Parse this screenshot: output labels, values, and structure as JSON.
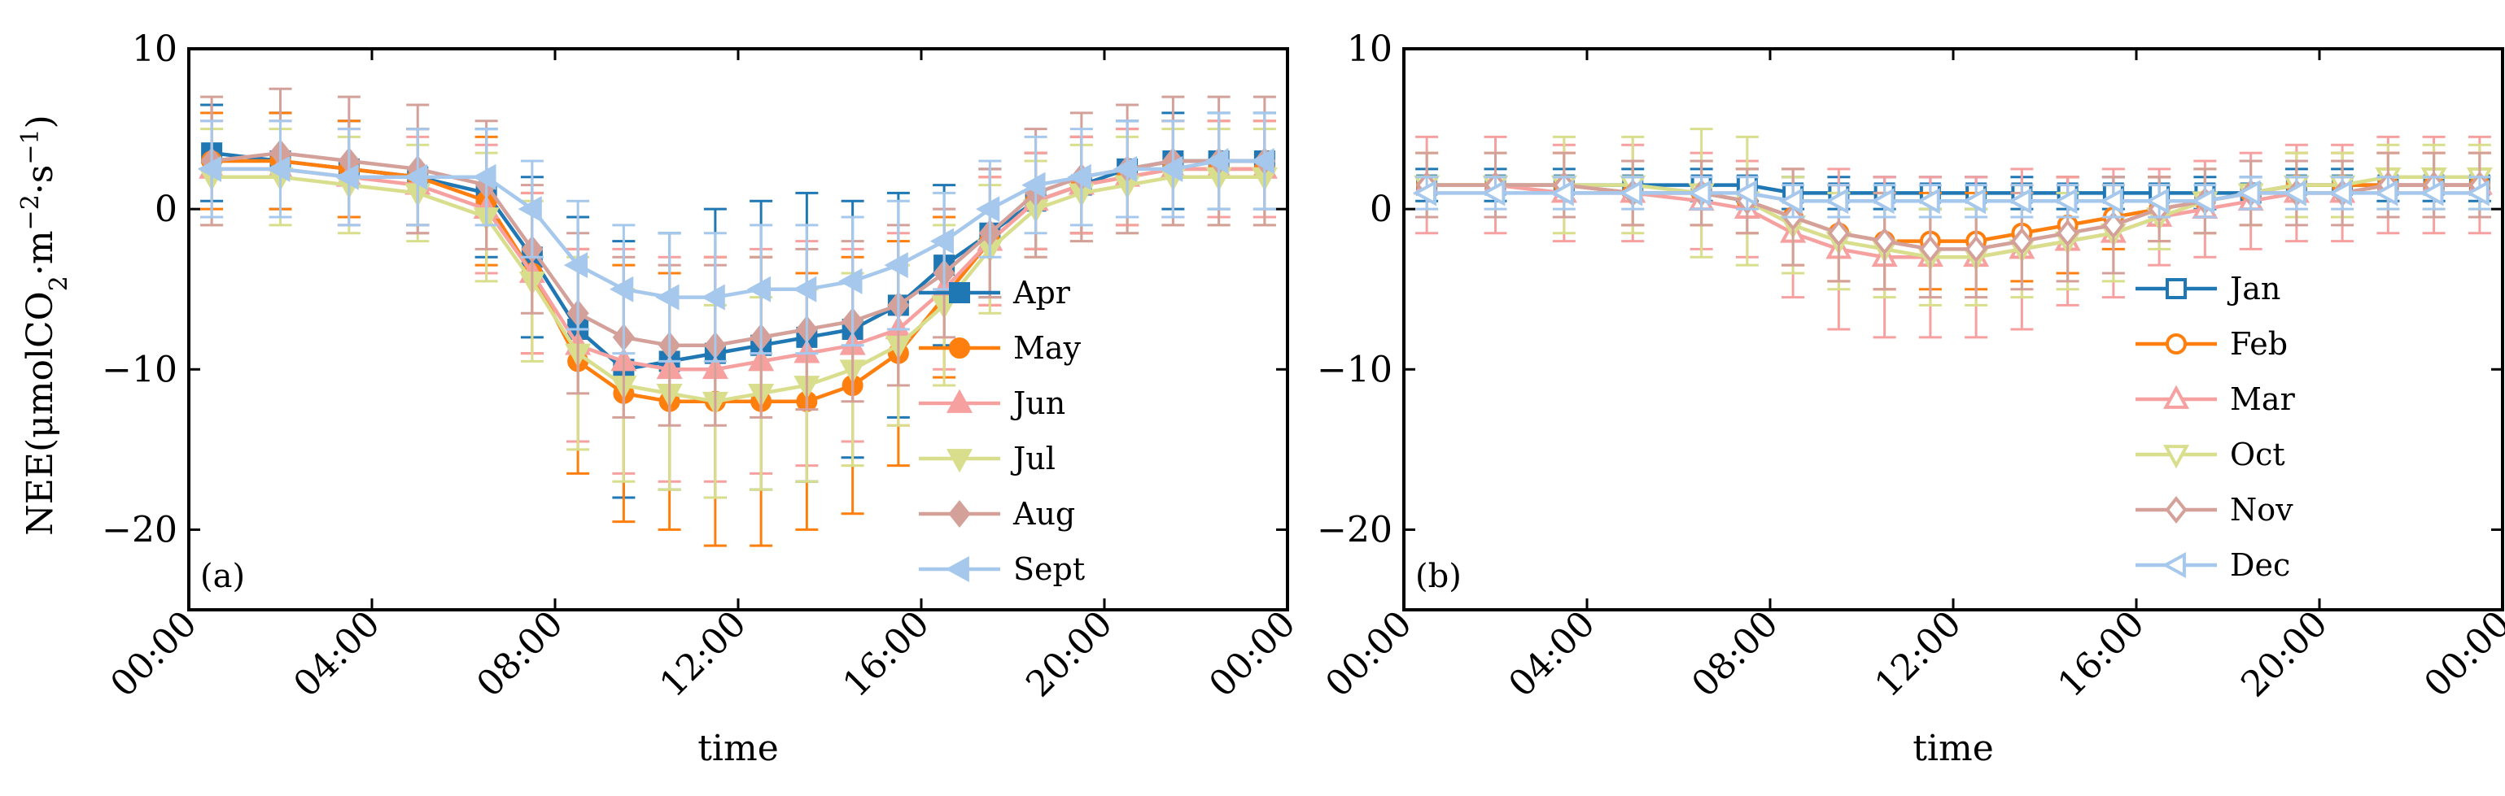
{
  "chart_data": [
    {
      "panel_label": "(a)",
      "type": "line",
      "error_bars": true,
      "xlabel": "time",
      "ylabel_main": "NEE(μmolCO",
      "ylabel_sub2": "2",
      "ylabel_mid": "·m",
      "ylabel_sup1": "−2",
      "ylabel_mid2": "·s",
      "ylabel_sup2": "−1",
      "ylabel_end": ")",
      "xlim": [
        0,
        24
      ],
      "ylim": [
        -25,
        10
      ],
      "x_ticks": [
        0,
        4,
        8,
        12,
        16,
        20,
        24
      ],
      "x_tick_labels": [
        "00:00",
        "04:00",
        "08:00",
        "12:00",
        "16:00",
        "20:00",
        "00:00"
      ],
      "y_ticks": [
        10,
        0,
        -10,
        -20
      ],
      "y_tick_labels": [
        "10",
        "0",
        "−10",
        "−20"
      ],
      "legend_position": "right",
      "series": [
        {
          "name": "Apr",
          "color": "#1f77b4",
          "marker": "square",
          "filled": true,
          "x": [
            0.5,
            2,
            3.5,
            5,
            6.5,
            7.5,
            8.5,
            9.5,
            10.5,
            11.5,
            12.5,
            13.5,
            14.5,
            15.5,
            16.5,
            17.5,
            18.5,
            19.5,
            20.5,
            21.5,
            22.5,
            23.5
          ],
          "y": [
            3.5,
            3.0,
            2.5,
            2.0,
            1.0,
            -3.0,
            -7.5,
            -10.0,
            -9.5,
            -9.0,
            -8.5,
            -8.0,
            -7.5,
            -6.0,
            -3.5,
            -1.5,
            0.5,
            1.5,
            2.5,
            3.0,
            3.0,
            3.0
          ],
          "err": [
            3,
            3,
            3,
            3,
            4,
            5,
            7,
            8,
            8,
            9,
            9,
            9,
            8,
            7,
            5,
            4,
            3,
            3,
            3,
            3,
            3,
            3
          ]
        },
        {
          "name": "May",
          "color": "#ff7f0e",
          "marker": "circle",
          "filled": true,
          "x": [
            0.5,
            2,
            3.5,
            5,
            6.5,
            7.5,
            8.5,
            9.5,
            10.5,
            11.5,
            12.5,
            13.5,
            14.5,
            15.5,
            16.5,
            17.5,
            18.5,
            19.5,
            20.5,
            21.5,
            22.5,
            23.5
          ],
          "y": [
            3.0,
            3.0,
            2.5,
            2.0,
            0.5,
            -4.0,
            -9.5,
            -11.5,
            -12.0,
            -12.0,
            -12.0,
            -12.0,
            -11.0,
            -9.0,
            -5.5,
            -2.0,
            0.5,
            1.5,
            2.0,
            2.5,
            2.5,
            2.5
          ],
          "err": [
            3,
            3,
            3,
            3,
            4,
            5,
            7,
            8,
            8,
            9,
            9,
            8,
            8,
            7,
            5,
            4,
            3,
            3,
            3,
            3,
            3,
            3
          ]
        },
        {
          "name": "Jun",
          "color": "#f7a0a0",
          "marker": "triangle-up",
          "filled": true,
          "x": [
            0.5,
            2,
            3.5,
            5,
            6.5,
            7.5,
            8.5,
            9.5,
            10.5,
            11.5,
            12.5,
            13.5,
            14.5,
            15.5,
            16.5,
            17.5,
            18.5,
            19.5,
            20.5,
            21.5,
            22.5,
            23.5
          ],
          "y": [
            2.5,
            2.5,
            2.0,
            1.5,
            0.0,
            -4.0,
            -8.5,
            -9.5,
            -10.0,
            -10.0,
            -9.5,
            -9.0,
            -8.5,
            -7.5,
            -5.0,
            -2.0,
            0.5,
            1.5,
            2.0,
            2.5,
            2.5,
            2.5
          ],
          "err": [
            3,
            3,
            3,
            3,
            4,
            5,
            6,
            7,
            7,
            7,
            7,
            7,
            6,
            6,
            5,
            4,
            3,
            3,
            3,
            3,
            3,
            3
          ]
        },
        {
          "name": "Jul",
          "color": "#d8de8c",
          "marker": "triangle-down",
          "filled": true,
          "x": [
            0.5,
            2,
            3.5,
            5,
            6.5,
            7.5,
            8.5,
            9.5,
            10.5,
            11.5,
            12.5,
            13.5,
            14.5,
            15.5,
            16.5,
            17.5,
            18.5,
            19.5,
            20.5,
            21.5,
            22.5,
            23.5
          ],
          "y": [
            2.0,
            2.0,
            1.5,
            1.0,
            -0.5,
            -4.5,
            -9.0,
            -11.0,
            -11.5,
            -12.0,
            -11.5,
            -11.0,
            -10.0,
            -8.5,
            -6.0,
            -2.5,
            0.0,
            1.0,
            1.5,
            2.0,
            2.0,
            2.0
          ],
          "err": [
            3,
            3,
            3,
            3,
            4,
            5,
            6,
            6,
            6,
            6,
            6,
            6,
            6,
            5,
            5,
            4,
            3,
            3,
            3,
            3,
            3,
            3
          ]
        },
        {
          "name": "Aug",
          "color": "#d4a09a",
          "marker": "diamond",
          "filled": true,
          "x": [
            0.5,
            2,
            3.5,
            5,
            6.5,
            7.5,
            8.5,
            9.5,
            10.5,
            11.5,
            12.5,
            13.5,
            14.5,
            15.5,
            16.5,
            17.5,
            18.5,
            19.5,
            20.5,
            21.5,
            22.5,
            23.5
          ],
          "y": [
            3.0,
            3.5,
            3.0,
            2.5,
            1.5,
            -2.5,
            -6.5,
            -8.0,
            -8.5,
            -8.5,
            -8.0,
            -7.5,
            -7.0,
            -6.0,
            -4.0,
            -1.5,
            1.0,
            2.0,
            2.5,
            3.0,
            3.0,
            3.0
          ],
          "err": [
            4,
            4,
            4,
            4,
            4,
            4,
            5,
            5,
            5,
            5,
            5,
            5,
            5,
            5,
            4,
            4,
            4,
            4,
            4,
            4,
            4,
            4
          ]
        },
        {
          "name": "Sept",
          "color": "#a6c8ec",
          "marker": "triangle-left",
          "filled": true,
          "x": [
            0.5,
            2,
            3.5,
            5,
            6.5,
            7.5,
            8.5,
            9.5,
            10.5,
            11.5,
            12.5,
            13.5,
            14.5,
            15.5,
            16.5,
            17.5,
            18.5,
            19.5,
            20.5,
            21.5,
            22.5,
            23.5
          ],
          "y": [
            2.5,
            2.5,
            2.0,
            2.0,
            2.0,
            0.0,
            -3.5,
            -5.0,
            -5.5,
            -5.5,
            -5.0,
            -5.0,
            -4.5,
            -3.5,
            -2.0,
            0.0,
            1.5,
            2.0,
            2.5,
            2.5,
            3.0,
            3.0
          ],
          "err": [
            3,
            3,
            3,
            3,
            3,
            3,
            4,
            4,
            4,
            4,
            4,
            4,
            4,
            4,
            3,
            3,
            3,
            3,
            3,
            3,
            3,
            3
          ]
        }
      ]
    },
    {
      "panel_label": "(b)",
      "type": "line",
      "error_bars": true,
      "xlabel": "time",
      "xlim": [
        0,
        24
      ],
      "ylim": [
        -25,
        10
      ],
      "x_ticks": [
        0,
        4,
        8,
        12,
        16,
        20,
        24
      ],
      "x_tick_labels": [
        "00:00",
        "04:00",
        "08:00",
        "12:00",
        "16:00",
        "20:00",
        "00:00"
      ],
      "y_ticks": [
        10,
        0,
        -10,
        -20
      ],
      "y_tick_labels": [
        "10",
        "0",
        "−10",
        "−20"
      ],
      "legend_position": "right",
      "series": [
        {
          "name": "Jan",
          "color": "#1f77b4",
          "marker": "square",
          "filled": false,
          "x": [
            0.5,
            2,
            3.5,
            5,
            6.5,
            7.5,
            8.5,
            9.5,
            10.5,
            11.5,
            12.5,
            13.5,
            14.5,
            15.5,
            16.5,
            17.5,
            18.5,
            19.5,
            20.5,
            21.5,
            22.5,
            23.5
          ],
          "y": [
            1.5,
            1.5,
            1.5,
            1.5,
            1.5,
            1.5,
            1.0,
            1.0,
            1.0,
            1.0,
            1.0,
            1.0,
            1.0,
            1.0,
            1.0,
            1.0,
            1.0,
            1.5,
            1.5,
            1.5,
            1.5,
            1.5
          ],
          "err": [
            1,
            1,
            1,
            1,
            1,
            1,
            1,
            1,
            1,
            1,
            1,
            1,
            1,
            1,
            1,
            1,
            1,
            1,
            1,
            1,
            1,
            1
          ]
        },
        {
          "name": "Feb",
          "color": "#ff7f0e",
          "marker": "circle",
          "filled": false,
          "x": [
            0.5,
            2,
            3.5,
            5,
            6.5,
            7.5,
            8.5,
            9.5,
            10.5,
            11.5,
            12.5,
            13.5,
            14.5,
            15.5,
            16.5,
            17.5,
            18.5,
            19.5,
            20.5,
            21.5,
            22.5,
            23.5
          ],
          "y": [
            1.5,
            1.5,
            1.5,
            1.0,
            1.0,
            0.5,
            -0.5,
            -1.5,
            -2.0,
            -2.0,
            -2.0,
            -1.5,
            -1.0,
            -0.5,
            0.0,
            0.5,
            1.0,
            1.5,
            1.5,
            1.5,
            1.5,
            1.5
          ],
          "err": [
            2,
            2,
            2,
            2,
            2,
            2,
            3,
            3,
            3,
            3,
            3,
            3,
            3,
            2,
            2,
            2,
            2,
            2,
            2,
            2,
            2,
            2
          ]
        },
        {
          "name": "Mar",
          "color": "#f7a0a0",
          "marker": "triangle-up",
          "filled": false,
          "x": [
            0.5,
            2,
            3.5,
            5,
            6.5,
            7.5,
            8.5,
            9.5,
            10.5,
            11.5,
            12.5,
            13.5,
            14.5,
            15.5,
            16.5,
            17.5,
            18.5,
            19.5,
            20.5,
            21.5,
            22.5,
            23.5
          ],
          "y": [
            1.5,
            1.5,
            1.0,
            1.0,
            0.5,
            0.0,
            -1.5,
            -2.5,
            -3.0,
            -3.0,
            -3.0,
            -2.5,
            -2.0,
            -1.5,
            -0.5,
            0.0,
            0.5,
            1.0,
            1.0,
            1.5,
            1.5,
            1.5
          ],
          "err": [
            3,
            3,
            3,
            3,
            3,
            3,
            4,
            5,
            5,
            5,
            5,
            5,
            4,
            4,
            3,
            3,
            3,
            3,
            3,
            3,
            3,
            3
          ]
        },
        {
          "name": "Oct",
          "color": "#d8de8c",
          "marker": "triangle-down",
          "filled": false,
          "x": [
            0.5,
            2,
            3.5,
            5,
            6.5,
            7.5,
            8.5,
            9.5,
            10.5,
            11.5,
            12.5,
            13.5,
            14.5,
            15.5,
            16.5,
            17.5,
            18.5,
            19.5,
            20.5,
            21.5,
            22.5,
            23.5
          ],
          "y": [
            1.5,
            1.5,
            1.5,
            1.5,
            1.0,
            0.5,
            -1.0,
            -2.0,
            -2.5,
            -3.0,
            -3.0,
            -2.5,
            -2.0,
            -1.5,
            -0.5,
            0.5,
            1.0,
            1.5,
            1.5,
            2.0,
            2.0,
            2.0
          ],
          "err": [
            2,
            2,
            3,
            3,
            4,
            4,
            3,
            3,
            3,
            3,
            3,
            3,
            3,
            3,
            2,
            2,
            2,
            2,
            2,
            2,
            2,
            2
          ]
        },
        {
          "name": "Nov",
          "color": "#d4a09a",
          "marker": "diamond",
          "filled": false,
          "x": [
            0.5,
            2,
            3.5,
            5,
            6.5,
            7.5,
            8.5,
            9.5,
            10.5,
            11.5,
            12.5,
            13.5,
            14.5,
            15.5,
            16.5,
            17.5,
            18.5,
            19.5,
            20.5,
            21.5,
            22.5,
            23.5
          ],
          "y": [
            1.5,
            1.5,
            1.5,
            1.0,
            1.0,
            0.5,
            -0.5,
            -1.5,
            -2.0,
            -2.5,
            -2.5,
            -2.0,
            -1.5,
            -1.0,
            0.0,
            0.5,
            1.0,
            1.0,
            1.0,
            1.5,
            1.5,
            1.5
          ],
          "err": [
            2,
            2,
            2,
            2,
            2,
            2,
            3,
            3,
            3,
            3,
            3,
            3,
            3,
            3,
            2,
            2,
            2,
            2,
            2,
            2,
            2,
            2
          ]
        },
        {
          "name": "Dec",
          "color": "#a6c8ec",
          "marker": "triangle-left",
          "filled": false,
          "x": [
            0.5,
            2,
            3.5,
            5,
            6.5,
            7.5,
            8.5,
            9.5,
            10.5,
            11.5,
            12.5,
            13.5,
            14.5,
            15.5,
            16.5,
            17.5,
            18.5,
            19.5,
            20.5,
            21.5,
            22.5,
            23.5
          ],
          "y": [
            1.0,
            1.0,
            1.0,
            1.0,
            1.0,
            1.0,
            0.5,
            0.5,
            0.5,
            0.5,
            0.5,
            0.5,
            0.5,
            0.5,
            0.5,
            0.5,
            1.0,
            1.0,
            1.0,
            1.0,
            1.0,
            1.0
          ],
          "err": [
            1,
            1,
            1,
            1,
            1,
            1,
            1,
            1,
            1,
            1,
            1,
            1,
            1,
            1,
            1,
            1,
            1,
            1,
            1,
            1,
            1,
            1
          ]
        }
      ]
    }
  ]
}
